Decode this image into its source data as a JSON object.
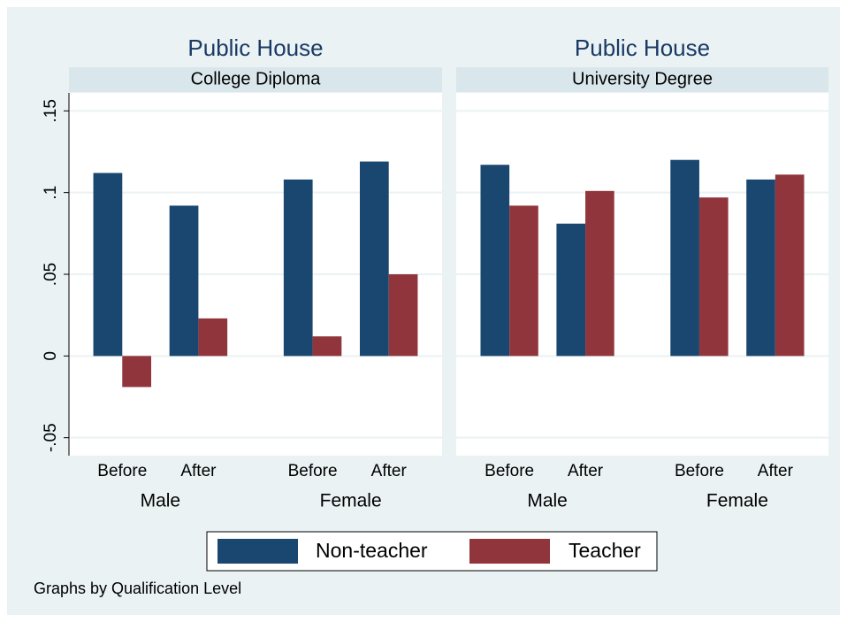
{
  "chart_data": [
    {
      "type": "bar",
      "title": "Public House",
      "subtitle": "College Diploma",
      "categories": [
        "Before",
        "After",
        "Before",
        "After"
      ],
      "groups": [
        "Male",
        "Female"
      ],
      "series": [
        {
          "name": "Non-teacher",
          "color": "#1a476f",
          "values": [
            0.112,
            0.092,
            0.108,
            0.119
          ]
        },
        {
          "name": "Teacher",
          "color": "#90353b",
          "values": [
            -0.019,
            0.023,
            0.012,
            0.05
          ]
        }
      ],
      "ylim": [
        -0.061,
        0.161
      ],
      "yticks": [
        {
          "value": -0.05,
          "label": "-.05"
        },
        0,
        {
          "value": 0.05,
          "label": ".05"
        },
        {
          "value": 0.1,
          "label": ".1"
        },
        {
          "value": 0.15,
          "label": ".15"
        }
      ],
      "grid": true
    },
    {
      "type": "bar",
      "title": "Public House",
      "subtitle": "University Degree",
      "categories": [
        "Before",
        "After",
        "Before",
        "After"
      ],
      "groups": [
        "Male",
        "Female"
      ],
      "series": [
        {
          "color": "#1a476f",
          "values": [
            0.117,
            0.081,
            0.12,
            0.108
          ]
        },
        {
          "color": "#90353b",
          "values": [
            0.092,
            0.101,
            0.097,
            0.111
          ]
        }
      ],
      "grid": true
    }
  ],
  "note": "Graphs by Qualification Level"
}
